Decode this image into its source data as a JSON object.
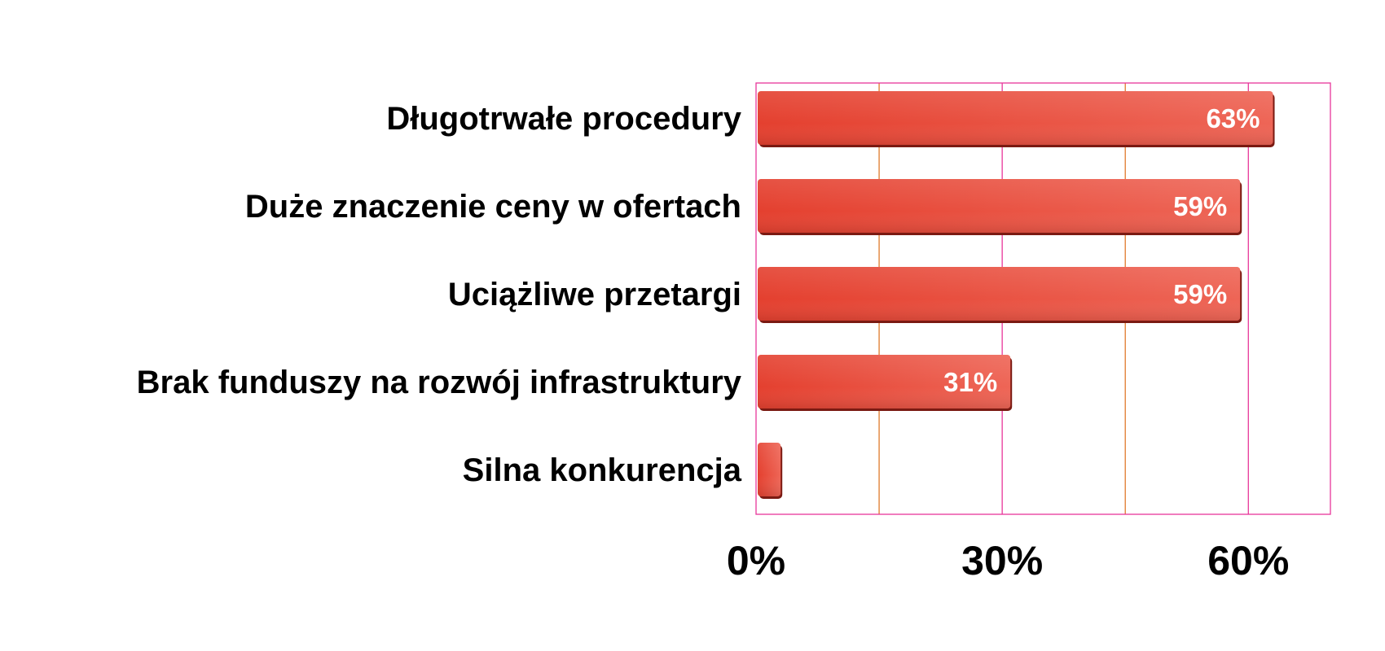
{
  "chart_data": {
    "type": "bar",
    "orientation": "horizontal",
    "categories": [
      "Długotrwałe procedury",
      "Duże znaczenie ceny w ofertach",
      "Uciążliwe przetargi",
      "Brak funduszy na rozwój infrastruktury",
      "Silna konkurencja"
    ],
    "values": [
      63,
      59,
      59,
      31,
      3
    ],
    "value_labels": [
      "63%",
      "59%",
      "59%",
      "31%",
      ""
    ],
    "xlim": [
      0,
      70
    ],
    "x_ticks": [
      0,
      30,
      60
    ],
    "x_tick_labels": [
      "0%",
      "30%",
      "60%"
    ],
    "grid": true,
    "legend": "none",
    "title": "",
    "xlabel": "",
    "ylabel": ""
  },
  "colors": {
    "bar": "#e8483a",
    "bar_light": "#ef6a5c",
    "bar_shadow": "#7a1a12",
    "plot_border": "#e8369a",
    "gridline_orange": "#e07a2c",
    "gridline_pink": "#e8369a",
    "value_text": "#ffffff",
    "label_text": "#000000"
  }
}
